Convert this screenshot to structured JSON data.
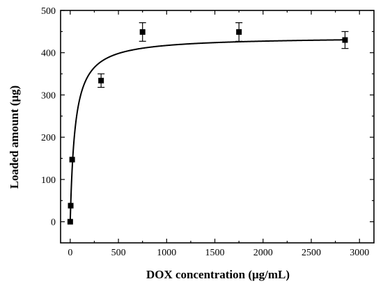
{
  "chart_data": {
    "type": "scatter",
    "title": "",
    "xlabel": "DOX concentration (μg/mL)",
    "ylabel": "Loaded amount (μg)",
    "xlim": [
      -100,
      3150
    ],
    "ylim": [
      -50,
      500
    ],
    "xticks": [
      0,
      500,
      1000,
      1500,
      2000,
      2500,
      3000
    ],
    "yticks": [
      0,
      100,
      200,
      300,
      400,
      500
    ],
    "legend": "none",
    "grid": false,
    "series": [
      {
        "marker": "square",
        "x": [
          0,
          5,
          20,
          320,
          750,
          1750,
          2850
        ],
        "y": [
          0,
          38,
          147,
          334,
          449,
          449,
          430
        ],
        "error": [
          0,
          0,
          0,
          16,
          22,
          22,
          20
        ]
      }
    ],
    "fit": {
      "type": "langmuir",
      "qmax": 438,
      "K": 0.02
    }
  }
}
